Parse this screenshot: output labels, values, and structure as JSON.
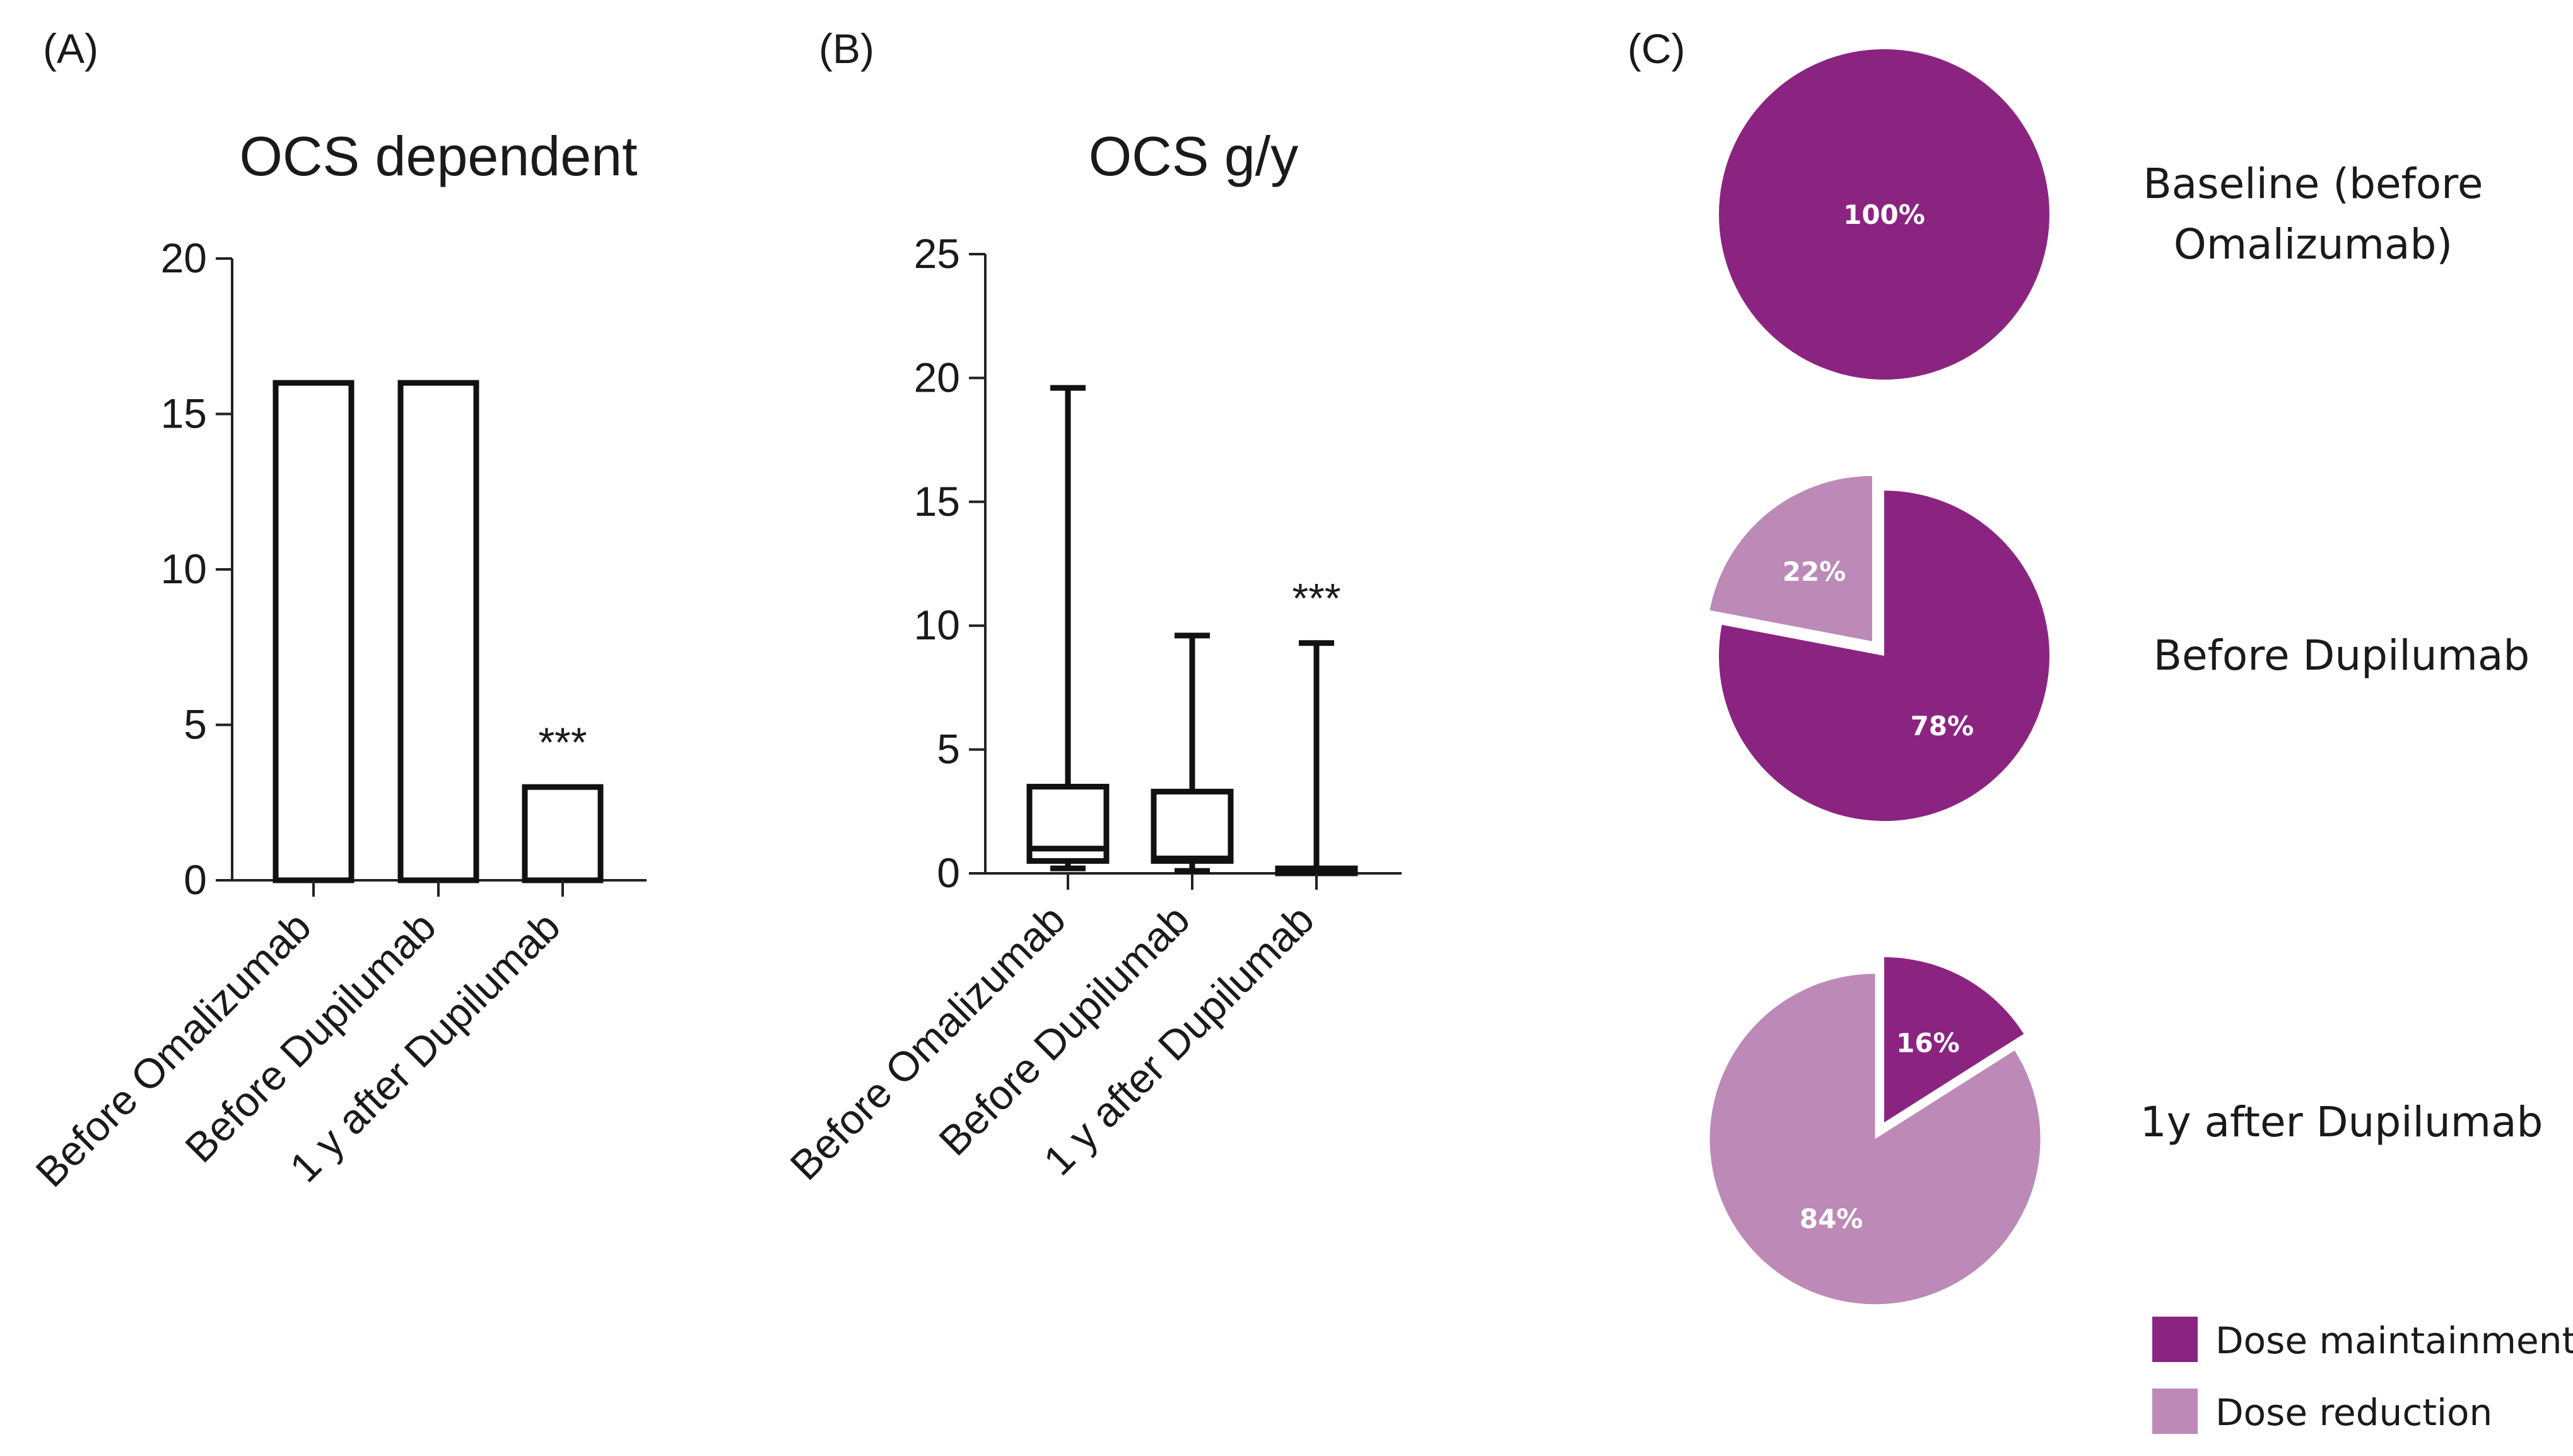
{
  "panels": {
    "a": "(A)",
    "b": "(B)",
    "c": "(C)"
  },
  "chart_data": [
    {
      "id": "A",
      "type": "bar",
      "title": "OCS dependent",
      "xlabel": "",
      "ylabel": "",
      "categories": [
        "Before Omalizumab",
        "Before Dupilumab",
        "1 y after Dupilumab"
      ],
      "values": [
        16,
        16,
        3
      ],
      "ylim": [
        0,
        20
      ],
      "yticks": [
        0,
        5,
        10,
        15,
        20
      ],
      "annotations": [
        {
          "category_index": 2,
          "text": "***"
        }
      ],
      "grid": false
    },
    {
      "id": "B",
      "type": "box",
      "title": "OCS g/y",
      "xlabel": "",
      "ylabel": "",
      "categories": [
        "Before Omalizumab",
        "Before Dupilumab",
        "1 y after Dupilumab"
      ],
      "boxes": [
        {
          "min": 0.2,
          "q1": 0.5,
          "median": 1.0,
          "q3": 3.5,
          "max": 19.6
        },
        {
          "min": 0.1,
          "q1": 0.5,
          "median": 0.6,
          "q3": 3.3,
          "max": 9.6
        },
        {
          "min": 0.0,
          "q1": 0.0,
          "median": 0.1,
          "q3": 0.2,
          "max": 9.3
        }
      ],
      "ylim": [
        0,
        25
      ],
      "yticks": [
        0,
        5,
        10,
        15,
        20,
        25
      ],
      "annotations": [
        {
          "category_index": 2,
          "text": "***"
        }
      ],
      "grid": false
    },
    {
      "id": "C",
      "type": "pie",
      "pies": [
        {
          "label": "Baseline (before Omalizumab)",
          "label_lines": [
            "Baseline (before",
            "Omalizumab)"
          ],
          "slices": [
            {
              "name": "Dose maintainment",
              "value": 100,
              "label": "100%"
            }
          ]
        },
        {
          "label": "Before Dupilumab",
          "label_lines": [
            "Before Dupilumab"
          ],
          "slices": [
            {
              "name": "Dose maintainment",
              "value": 78,
              "label": "78%"
            },
            {
              "name": "Dose reduction",
              "value": 22,
              "label": "22%"
            }
          ]
        },
        {
          "label": "1y after Dupilumab",
          "label_lines": [
            "1y after Dupilumab"
          ],
          "slices": [
            {
              "name": "Dose maintainment",
              "value": 16,
              "label": "16%"
            },
            {
              "name": "Dose reduction",
              "value": 84,
              "label": "84%"
            }
          ]
        }
      ],
      "legend": [
        {
          "name": "Dose maintainment",
          "color": "#8b2480"
        },
        {
          "name": "Dose reduction",
          "color": "#bd89b7"
        }
      ]
    }
  ]
}
